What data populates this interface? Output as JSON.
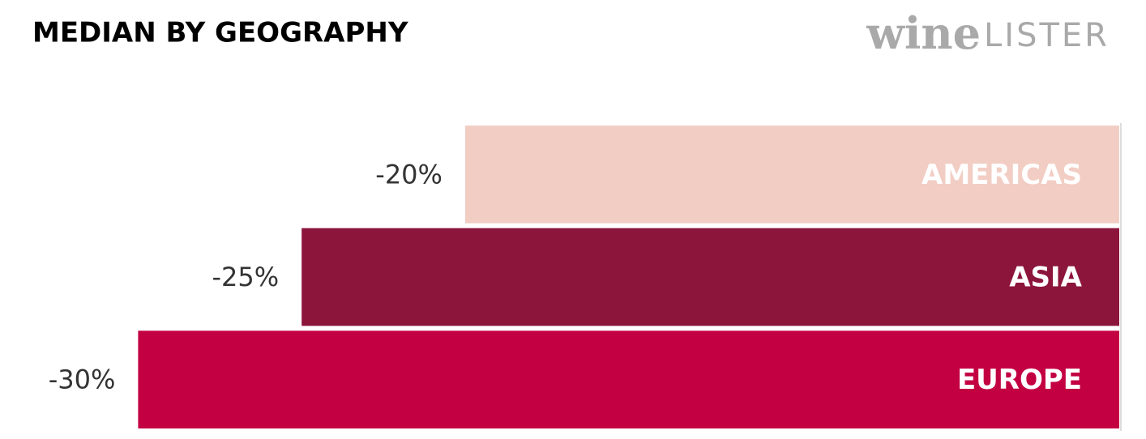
{
  "chart_data": {
    "type": "hbar",
    "title": "MEDIAN BY GEOGRAPHY",
    "logo": {
      "part1": "wine",
      "part2": "LISTER"
    },
    "categories": [
      "AMERICAS",
      "ASIA",
      "EUROPE"
    ],
    "values": [
      -20,
      -25,
      -30
    ],
    "value_labels": [
      "-20%",
      "-25%",
      "-30%"
    ],
    "colors": [
      "#f2cdc4",
      "#8c153c",
      "#c30042"
    ],
    "label_color": "#ffffff",
    "xlim": [
      -34,
      0
    ]
  }
}
